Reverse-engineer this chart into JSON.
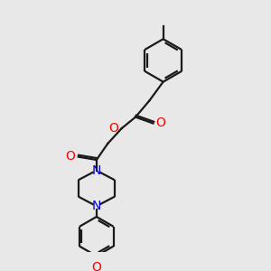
{
  "bg_color": "#e8e8e8",
  "line_color": "#1a1a1a",
  "O_color": "#ff0000",
  "N_color": "#0000cc",
  "lw": 1.6,
  "figsize": [
    3.0,
    3.0
  ],
  "dpi": 100,
  "xlim": [
    0,
    10
  ],
  "ylim": [
    0,
    10
  ]
}
